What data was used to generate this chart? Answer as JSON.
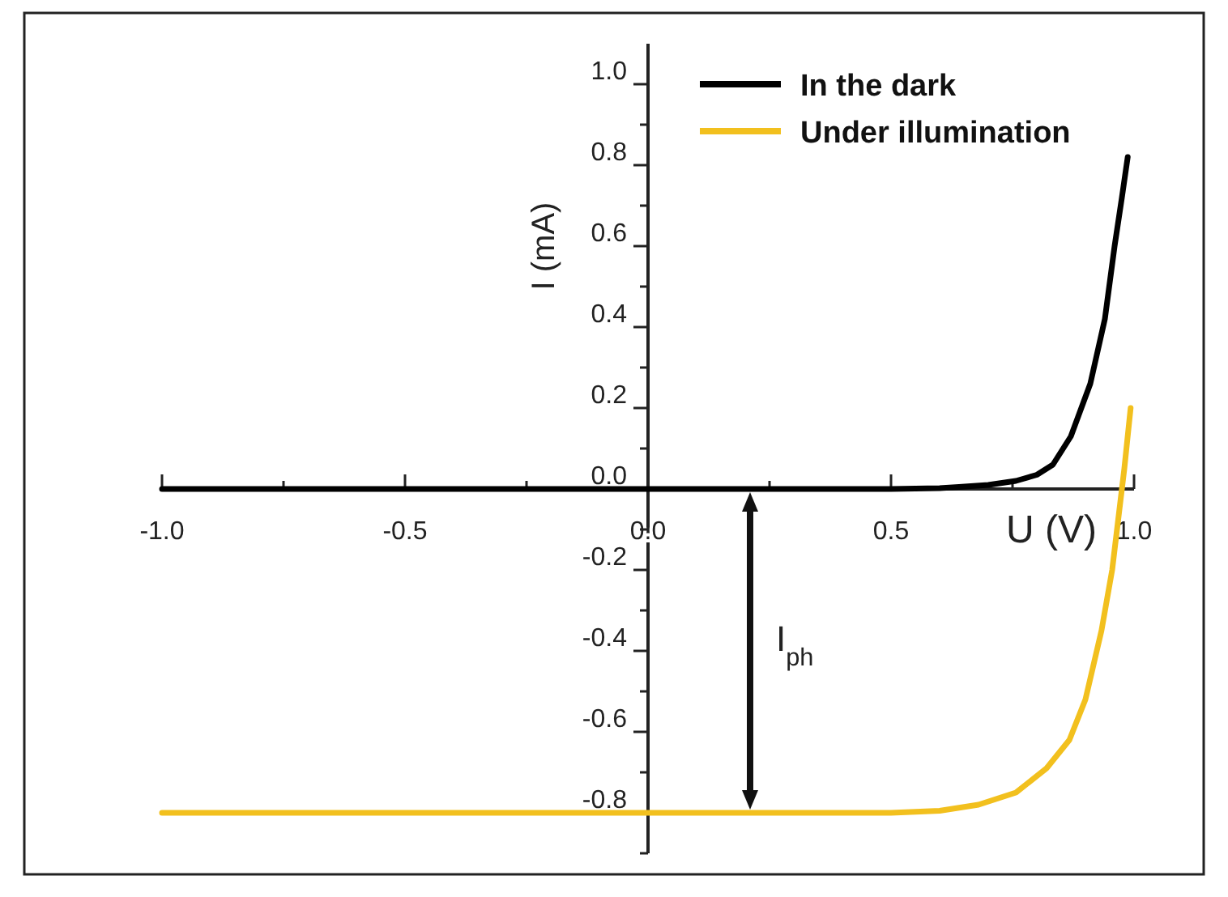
{
  "chart_data": {
    "type": "line",
    "xlabel": "U (V)",
    "ylabel": "I (mA)",
    "x": [
      -1.0,
      0.0,
      0.5,
      0.6,
      0.64,
      0.7,
      0.757,
      0.8,
      0.833,
      0.87,
      0.91,
      0.94,
      0.96,
      0.975,
      0.987
    ],
    "xlim": [
      -1.0,
      1.0
    ],
    "ylim": [
      -0.9,
      1.1
    ],
    "xticks": [
      {
        "value": -1,
        "label": "-1.0"
      },
      {
        "value": -0.75,
        "label": null
      },
      -0.5,
      {
        "value": -0.25,
        "label": null
      },
      {
        "value": 0,
        "label": "0.0"
      },
      {
        "value": 0.25,
        "label": null
      },
      0.5,
      {
        "value": 0.75,
        "label": null
      },
      {
        "value": 1,
        "label": "1.0"
      }
    ],
    "yticks": [
      {
        "value": -0.9,
        "label": null
      },
      -0.8,
      {
        "value": -0.7,
        "label": null
      },
      -0.6,
      {
        "value": -0.5,
        "label": null
      },
      -0.4,
      {
        "value": -0.3,
        "label": null
      },
      -0.2,
      {
        "value": -0.1,
        "label": null
      },
      {
        "value": 0,
        "label": "0.0"
      },
      {
        "value": 0.1,
        "label": null
      },
      0.2,
      {
        "value": 0.3,
        "label": null
      },
      0.4,
      {
        "value": 0.5,
        "label": null
      },
      0.6,
      {
        "value": 0.7,
        "label": null
      },
      0.8,
      {
        "value": 0.9,
        "label": null
      },
      {
        "value": 1,
        "label": "1.0"
      }
    ],
    "legend": "top right",
    "grid": false,
    "marker": "none",
    "line_style": "solid",
    "series": [
      {
        "name": "In the dark",
        "color": "#000000",
        "values": [
          0,
          0,
          0,
          0.002,
          0.005,
          0.01,
          0.02,
          0.035,
          0.06,
          0.13,
          0.26,
          0.42,
          0.6,
          0.72,
          0.82
        ]
      },
      {
        "name": "Under illumination",
        "color": "#f2c01e",
        "x": [
          -1.0,
          0.0,
          0.5,
          0.6,
          0.68,
          0.757,
          0.82,
          0.867,
          0.9,
          0.933,
          0.955,
          0.967,
          0.98,
          0.993
        ],
        "values": [
          -0.8,
          -0.8,
          -0.8,
          -0.795,
          -0.78,
          -0.75,
          -0.69,
          -0.62,
          -0.52,
          -0.35,
          -0.2,
          -0.08,
          0.05,
          0.2
        ]
      }
    ],
    "annotations": [
      "I$_{ph}$"
    ]
  }
}
